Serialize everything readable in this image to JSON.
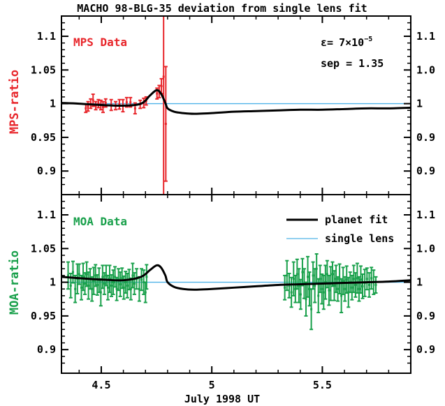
{
  "chart_data": [
    {
      "type": "scatter",
      "title": "MACHO 98-BLG-35 deviation from single lens fit",
      "panel_label": "MPS Data",
      "ylabel": "MPS-ratio",
      "ylim": [
        0.865,
        1.13
      ],
      "xlim": [
        4.32,
        5.9
      ],
      "yticks": [
        0.9,
        0.95,
        1,
        1.05,
        1.1
      ],
      "ytick_labels": [
        "0.9",
        "0.95",
        "1",
        "1.05",
        "1.1"
      ],
      "right_ytick_labels": [
        "0.9",
        "0.9",
        "1",
        "1.0",
        "1.1"
      ],
      "annotations": {
        "epsilon_prefix": "ε=",
        "epsilon_mantissa": "7×10",
        "epsilon_exponent": "−5",
        "sep": "sep = 1.35"
      },
      "color": "#e8262b",
      "series": [
        {
          "name": "MPS Data",
          "points": [
            [
              4.43,
              0.993,
              0.006
            ],
            [
              4.44,
              0.996,
              0.007
            ],
            [
              4.452,
              1.0,
              0.007
            ],
            [
              4.463,
              1.005,
              0.009
            ],
            [
              4.475,
              0.997,
              0.006
            ],
            [
              4.487,
              1.0,
              0.006
            ],
            [
              4.498,
              0.998,
              0.007
            ],
            [
              4.508,
              0.995,
              0.008
            ],
            [
              4.52,
              1.001,
              0.006
            ],
            [
              4.545,
              0.998,
              0.008
            ],
            [
              4.565,
              0.997,
              0.006
            ],
            [
              4.582,
              0.999,
              0.007
            ],
            [
              4.598,
              0.997,
              0.009
            ],
            [
              4.615,
              1.002,
              0.007
            ],
            [
              4.632,
              1.002,
              0.007
            ],
            [
              4.653,
              0.993,
              0.008
            ],
            [
              4.676,
              0.999,
              0.006
            ],
            [
              4.692,
              1.001,
              0.007
            ],
            [
              4.703,
              1.004,
              0.006
            ],
            [
              4.752,
              1.015,
              0.008
            ],
            [
              4.762,
              1.018,
              0.009
            ],
            [
              4.772,
              1.026,
              0.011
            ],
            [
              4.782,
              1.04,
              0.32
            ],
            [
              4.792,
              0.97,
              0.085
            ]
          ]
        },
        {
          "name": "planet fit",
          "x": [
            4.32,
            4.4,
            4.5,
            4.6,
            4.68,
            4.72,
            4.75,
            4.77,
            4.79,
            4.8,
            4.83,
            4.87,
            4.92,
            5.0,
            5.1,
            5.2,
            5.3,
            5.4,
            5.5,
            5.6,
            5.7,
            5.8,
            5.9
          ],
          "y": [
            1.001,
            1.0,
            0.998,
            0.997,
            1.0,
            1.012,
            1.02,
            1.015,
            1.001,
            0.993,
            0.988,
            0.986,
            0.985,
            0.986,
            0.988,
            0.989,
            0.99,
            0.991,
            0.991,
            0.992,
            0.993,
            0.993,
            0.994
          ]
        },
        {
          "name": "single lens",
          "x": [
            4.32,
            5.9
          ],
          "y": [
            1.0,
            1.0
          ]
        }
      ]
    },
    {
      "type": "scatter",
      "panel_label": "MOA Data",
      "ylabel": "MOA-ratio",
      "xlabel": "July 1998 UT",
      "ylim": [
        0.865,
        1.13
      ],
      "xlim": [
        4.32,
        5.9
      ],
      "xticks": [
        4.5,
        5,
        5.5
      ],
      "xtick_labels": [
        "4.5",
        "5",
        "5.5"
      ],
      "yticks": [
        0.9,
        0.95,
        1,
        1.05,
        1.1
      ],
      "ytick_labels": [
        "0.9",
        "0.95",
        "1",
        "1.05",
        "1.1"
      ],
      "right_ytick_labels": [
        "0.9",
        "0.9",
        "1",
        "1.0",
        "1.1"
      ],
      "color": "#19a04b",
      "legend": [
        "planet fit",
        "single lens"
      ],
      "series": [
        {
          "name": "MOA Data",
          "points": [
            [
              4.35,
              1.01,
              0.02
            ],
            [
              4.362,
              0.995,
              0.018
            ],
            [
              4.372,
              1.015,
              0.016
            ],
            [
              4.382,
              0.99,
              0.02
            ],
            [
              4.392,
              1.005,
              0.022
            ],
            [
              4.4,
              1.012,
              0.015
            ],
            [
              4.41,
              0.992,
              0.018
            ],
            [
              4.418,
              1.008,
              0.02
            ],
            [
              4.426,
              0.998,
              0.016
            ],
            [
              4.434,
              1.012,
              0.018
            ],
            [
              4.442,
              0.995,
              0.02
            ],
            [
              4.45,
              1.005,
              0.015
            ],
            [
              4.458,
              0.99,
              0.018
            ],
            [
              4.466,
              1.002,
              0.02
            ],
            [
              4.474,
              1.01,
              0.016
            ],
            [
              4.482,
              0.996,
              0.015
            ],
            [
              4.49,
              1.003,
              0.018
            ],
            [
              4.498,
              0.985,
              0.02
            ],
            [
              4.506,
              1.008,
              0.017
            ],
            [
              4.514,
              0.998,
              0.016
            ],
            [
              4.522,
              1.01,
              0.015
            ],
            [
              4.53,
              0.992,
              0.018
            ],
            [
              4.538,
              1.005,
              0.02
            ],
            [
              4.546,
              0.995,
              0.016
            ],
            [
              4.554,
              1.0,
              0.018
            ],
            [
              4.562,
              1.008,
              0.015
            ],
            [
              4.57,
              0.99,
              0.017
            ],
            [
              4.578,
              1.004,
              0.016
            ],
            [
              4.586,
              0.997,
              0.018
            ],
            [
              4.594,
              1.006,
              0.015
            ],
            [
              4.602,
              0.992,
              0.017
            ],
            [
              4.61,
              1.0,
              0.016
            ],
            [
              4.618,
              0.995,
              0.018
            ],
            [
              4.626,
              1.004,
              0.015
            ],
            [
              4.634,
              0.99,
              0.016
            ],
            [
              4.642,
              1.01,
              0.018
            ],
            [
              4.65,
              0.998,
              0.016
            ],
            [
              4.66,
              1.005,
              0.015
            ],
            [
              4.672,
              0.99,
              0.018
            ],
            [
              4.682,
              1.004,
              0.016
            ],
            [
              4.692,
              1.0,
              0.018
            ],
            [
              4.7,
              0.985,
              0.015
            ],
            [
              4.705,
              1.008,
              0.018
            ],
            [
              5.33,
              0.992,
              0.018
            ],
            [
              5.34,
              1.01,
              0.022
            ],
            [
              5.35,
              0.995,
              0.018
            ],
            [
              5.36,
              0.985,
              0.022
            ],
            [
              5.37,
              1.005,
              0.025
            ],
            [
              5.378,
              0.99,
              0.02
            ],
            [
              5.386,
              1.012,
              0.022
            ],
            [
              5.394,
              0.995,
              0.025
            ],
            [
              5.402,
              0.982,
              0.022
            ],
            [
              5.41,
              1.015,
              0.02
            ],
            [
              5.418,
              0.998,
              0.022
            ],
            [
              5.426,
              0.975,
              0.025
            ],
            [
              5.434,
              1.008,
              0.03
            ],
            [
              5.442,
              0.99,
              0.025
            ],
            [
              5.45,
              0.96,
              0.03
            ],
            [
              5.458,
              1.01,
              0.02
            ],
            [
              5.466,
              0.995,
              0.025
            ],
            [
              5.474,
              1.02,
              0.022
            ],
            [
              5.482,
              0.98,
              0.025
            ],
            [
              5.49,
              1.005,
              0.02
            ],
            [
              5.498,
              0.99,
              0.022
            ],
            [
              5.506,
              0.985,
              0.025
            ],
            [
              5.514,
              1.0,
              0.025
            ],
            [
              5.522,
              1.012,
              0.02
            ],
            [
              5.53,
              0.988,
              0.022
            ],
            [
              5.538,
              0.998,
              0.025
            ],
            [
              5.546,
              1.012,
              0.018
            ],
            [
              5.554,
              0.995,
              0.022
            ],
            [
              5.562,
              1.005,
              0.02
            ],
            [
              5.57,
              0.99,
              0.018
            ],
            [
              5.578,
              1.005,
              0.022
            ],
            [
              5.586,
              0.98,
              0.025
            ],
            [
              5.594,
              1.002,
              0.02
            ],
            [
              5.602,
              0.99,
              0.018
            ],
            [
              5.61,
              1.004,
              0.02
            ],
            [
              5.618,
              0.985,
              0.022
            ],
            [
              5.626,
              1.0,
              0.015
            ],
            [
              5.634,
              0.992,
              0.018
            ],
            [
              5.642,
              1.005,
              0.02
            ],
            [
              5.65,
              0.996,
              0.018
            ],
            [
              5.658,
              1.006,
              0.022
            ],
            [
              5.666,
              0.99,
              0.018
            ],
            [
              5.674,
              1.004,
              0.02
            ],
            [
              5.682,
              0.994,
              0.018
            ],
            [
              5.692,
              0.999,
              0.02
            ],
            [
              5.702,
              1.005,
              0.016
            ],
            [
              5.712,
              0.996,
              0.018
            ],
            [
              5.722,
              1.006,
              0.016
            ],
            [
              5.732,
              1.0,
              0.018
            ],
            [
              5.742,
              0.996,
              0.012
            ]
          ]
        },
        {
          "name": "planet fit",
          "x": [
            4.32,
            4.4,
            4.5,
            4.6,
            4.68,
            4.72,
            4.75,
            4.77,
            4.79,
            4.8,
            4.83,
            4.87,
            4.92,
            5.0,
            5.1,
            5.2,
            5.3,
            5.4,
            5.5,
            5.6,
            5.7,
            5.8,
            5.9
          ],
          "y": [
            1.008,
            1.006,
            1.004,
            1.003,
            1.008,
            1.018,
            1.025,
            1.022,
            1.01,
            1.0,
            0.993,
            0.99,
            0.989,
            0.99,
            0.992,
            0.994,
            0.996,
            0.997,
            0.998,
            0.999,
            1.0,
            1.001,
            1.003
          ]
        },
        {
          "name": "single lens",
          "x": [
            4.32,
            5.9
          ],
          "y": [
            1.0,
            1.0
          ]
        }
      ]
    }
  ],
  "colors": {
    "fit": "#000000",
    "single_lens": "#4fb3e8",
    "mps": "#e8262b",
    "moa": "#19a04b"
  }
}
